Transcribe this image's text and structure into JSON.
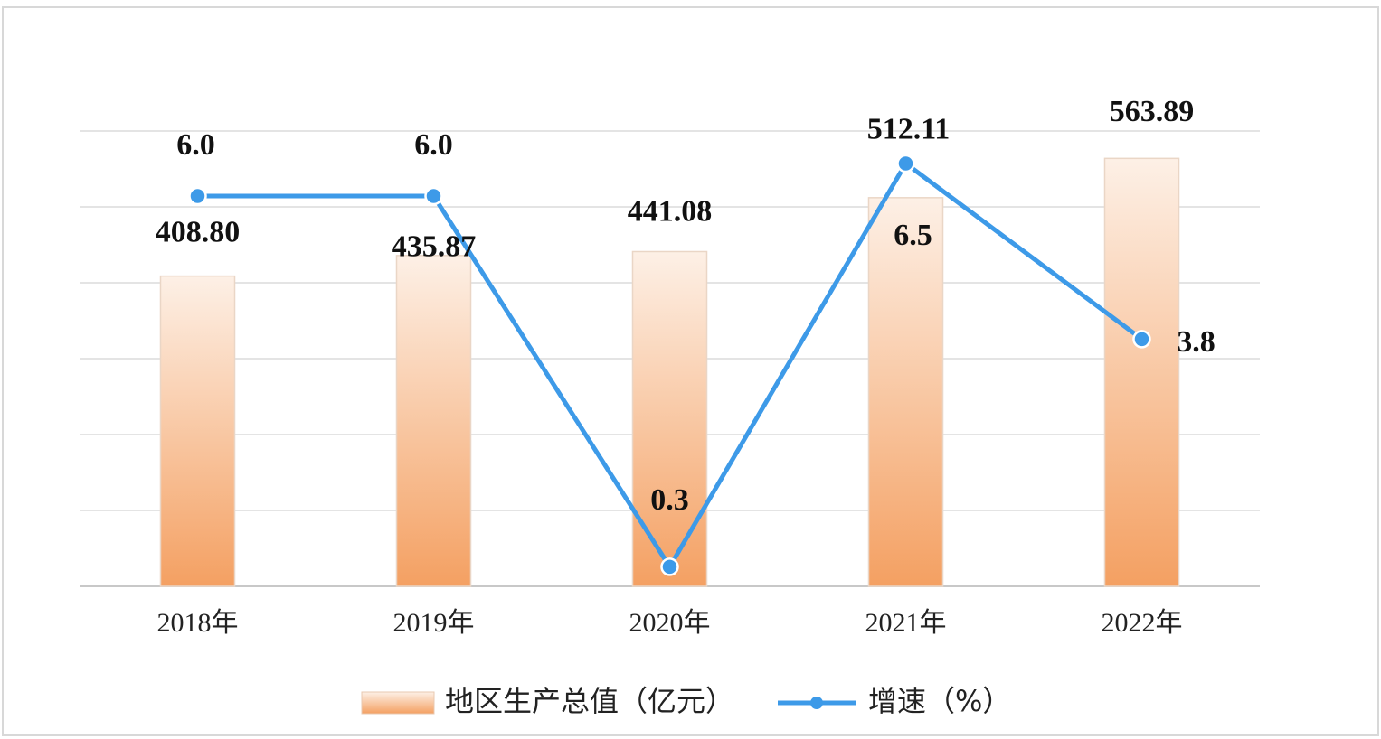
{
  "chart_data": {
    "type": "bar-line",
    "categories": [
      "2018年",
      "2019年",
      "2020年",
      "2021年",
      "2022年"
    ],
    "series": [
      {
        "name": "地区生产总值（亿元）",
        "type": "bar",
        "color": "#f4a062",
        "values": [
          408.8,
          435.87,
          441.08,
          512.11,
          563.89
        ],
        "value_labels": [
          "408.80",
          "435.87",
          "441.08",
          "512.11",
          "563.89"
        ]
      },
      {
        "name": "增速（%）",
        "type": "line",
        "axis": "y2",
        "color": "#3d9ae8",
        "values": [
          6.0,
          6.0,
          0.3,
          6.5,
          3.8
        ],
        "value_labels": [
          "6.0",
          "6.0",
          "0.3",
          "6.5",
          "3.8"
        ]
      }
    ],
    "ylim": [
      0,
      600
    ],
    "yticks": [
      0,
      100,
      200,
      300,
      400,
      500,
      600
    ],
    "y2lim": [
      0,
      7
    ],
    "grid": true,
    "legend": "bottom"
  }
}
